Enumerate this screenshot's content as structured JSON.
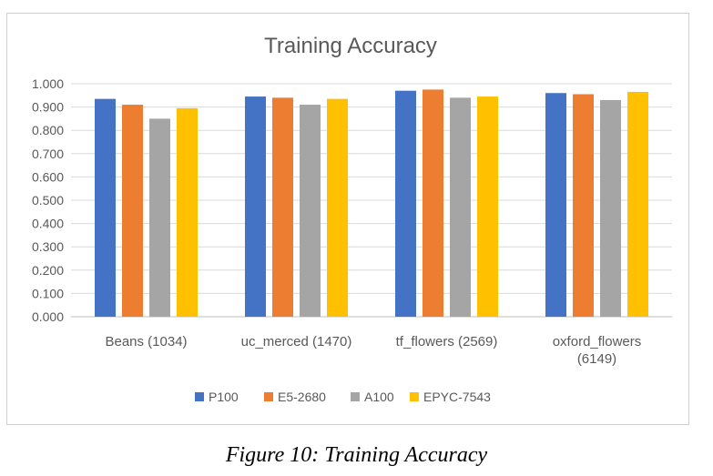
{
  "chart_data": {
    "type": "bar",
    "title": "Training Accuracy",
    "categories": [
      [
        "Beans (1034)"
      ],
      [
        "uc_merced (1470)"
      ],
      [
        "tf_flowers (2569)"
      ],
      [
        "oxford_flowers",
        "(6149)"
      ]
    ],
    "series": [
      {
        "name": "P100",
        "color": "#4472c4",
        "values": [
          0.935,
          0.945,
          0.97,
          0.96
        ]
      },
      {
        "name": "E5-2680",
        "color": "#ed7d31",
        "values": [
          0.91,
          0.94,
          0.975,
          0.955
        ]
      },
      {
        "name": "A100",
        "color": "#a5a5a5",
        "values": [
          0.85,
          0.91,
          0.94,
          0.93
        ]
      },
      {
        "name": "EPYC-7543",
        "color": "#ffc000",
        "values": [
          0.895,
          0.935,
          0.945,
          0.965
        ]
      }
    ],
    "ylim": [
      0,
      1
    ],
    "yticks": [
      "0.000",
      "0.100",
      "0.200",
      "0.300",
      "0.400",
      "0.500",
      "0.600",
      "0.700",
      "0.800",
      "0.900",
      "1.000"
    ],
    "grid": true,
    "legend": "bottom"
  },
  "caption": "Figure 10: Training Accuracy"
}
